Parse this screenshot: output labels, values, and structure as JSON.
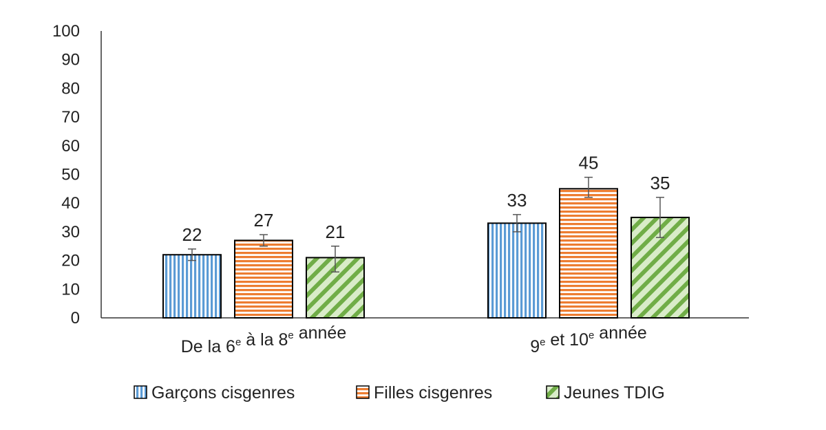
{
  "chart_data": {
    "type": "bar",
    "categories": [
      {
        "main": "De la 6",
        "sup1": "e",
        "mid": " à la 8",
        "sup2": "e",
        "end": " année"
      },
      {
        "main": "9",
        "sup1": "e",
        "mid": " et 10",
        "sup2": "e",
        "end": " année"
      }
    ],
    "category_text": [
      "De la 6e à la 8e année",
      "9e et 10e année"
    ],
    "series": [
      {
        "name": "Garçons cisgenres",
        "values": [
          22,
          33
        ],
        "error_low": [
          20,
          30
        ],
        "error_high": [
          24,
          36
        ],
        "color": "#5b9bd5",
        "pattern": "vertical-stripes"
      },
      {
        "name": "Filles cisgenres",
        "values": [
          27,
          45
        ],
        "error_low": [
          25,
          42
        ],
        "error_high": [
          29,
          49
        ],
        "color": "#ed7d31",
        "pattern": "horizontal-stripes"
      },
      {
        "name": "Jeunes TDIG",
        "values": [
          21,
          35
        ],
        "error_low": [
          16,
          28
        ],
        "error_high": [
          25,
          42
        ],
        "color": "#70ad47",
        "pattern": "diagonal-stripes"
      }
    ],
    "y_ticks": [
      "0",
      "10",
      "20",
      "30",
      "40",
      "50",
      "60",
      "70",
      "80",
      "90",
      "100"
    ],
    "ylim": [
      0,
      100
    ],
    "grid": false,
    "legend_position": "bottom",
    "title": "",
    "xlabel": "",
    "ylabel": ""
  }
}
